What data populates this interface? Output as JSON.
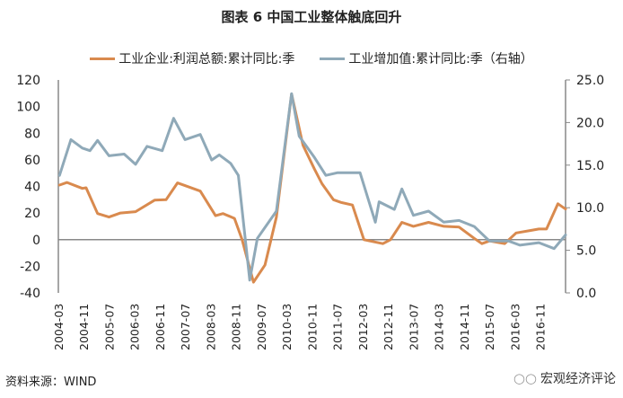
{
  "chart_data": {
    "type": "line",
    "title": "图表 6  中国工业整体触底回升",
    "xlabel": "",
    "x_tick_labels": [
      "2004-03",
      "2004-11",
      "2005-07",
      "2006-03",
      "2006-11",
      "2007-07",
      "2008-03",
      "2008-11",
      "2009-07",
      "2010-03",
      "2010-11",
      "2011-07",
      "2012-03",
      "2012-11",
      "2013-07",
      "2014-03",
      "2014-11",
      "2015-07",
      "2016-03",
      "2016-11"
    ],
    "x_range": [
      2004.17,
      2017.5
    ],
    "y_left": {
      "ylim": [
        -40,
        120
      ],
      "ticks": [
        "120",
        "100",
        "80",
        "60",
        "40",
        "20",
        "0",
        "-20",
        "-40"
      ]
    },
    "y_right": {
      "ylim": [
        0,
        25
      ],
      "ticks": [
        "25.0",
        "20.0",
        "15.0",
        "10.0",
        "5.0",
        "0.0"
      ]
    },
    "legend_placement": "top",
    "series": [
      {
        "name": "工业企业:利润总额:累计同比:季",
        "axis": "left",
        "color": "#d98a4e",
        "x": [
          2004.2,
          2004.4,
          2004.8,
          2004.9,
          2005.2,
          2005.5,
          2005.8,
          2006.2,
          2006.7,
          2007.0,
          2007.3,
          2007.5,
          2007.9,
          2008.3,
          2008.5,
          2008.8,
          2009.0,
          2009.3,
          2009.6,
          2009.9,
          2010.3,
          2010.6,
          2010.9,
          2011.1,
          2011.4,
          2011.6,
          2011.9,
          2012.2,
          2012.7,
          2012.9,
          2013.2,
          2013.5,
          2013.9,
          2014.3,
          2014.7,
          2015.1,
          2015.3,
          2015.5,
          2015.9,
          2016.2,
          2016.6,
          2016.8,
          2017.0,
          2017.3,
          2017.5
        ],
        "values": [
          41,
          43,
          38.5,
          39,
          19.6,
          17,
          20,
          21,
          29.7,
          30,
          42.6,
          40.6,
          36.5,
          18,
          19.6,
          16,
          0,
          -32,
          -19,
          17,
          109.5,
          71,
          53,
          42,
          30,
          28,
          26,
          0,
          -3,
          0,
          13,
          10,
          13,
          10,
          9.5,
          1,
          -3,
          -1,
          -3,
          5,
          7,
          8,
          8,
          27,
          23
        ]
      },
      {
        "name": "工业增加值:累计同比:季（右轴）",
        "axis": "right",
        "color": "#8fa9b8",
        "x": [
          2004.2,
          2004.5,
          2004.8,
          2005.0,
          2005.2,
          2005.5,
          2005.9,
          2006.2,
          2006.5,
          2006.9,
          2007.2,
          2007.5,
          2007.9,
          2008.2,
          2008.4,
          2008.7,
          2008.9,
          2009.2,
          2009.4,
          2009.9,
          2010.3,
          2010.5,
          2010.9,
          2011.2,
          2011.5,
          2011.6,
          2012.1,
          2012.5,
          2012.6,
          2013.0,
          2013.2,
          2013.5,
          2013.9,
          2014.3,
          2014.7,
          2015.1,
          2015.5,
          2016.0,
          2016.3,
          2016.8,
          2017.2,
          2017.5
        ],
        "values": [
          13.8,
          18,
          17,
          16.7,
          17.9,
          16.1,
          16.3,
          15.1,
          17.2,
          16.7,
          20.5,
          18,
          18.6,
          15.6,
          16.2,
          15.2,
          13.8,
          1.5,
          6.4,
          9.6,
          23.4,
          18.4,
          15.9,
          13.8,
          14.1,
          14.1,
          14.1,
          8.3,
          10.7,
          9.8,
          12.2,
          9.1,
          9.6,
          8.3,
          8.5,
          7.8,
          6.1,
          6.1,
          5.6,
          5.9,
          5.2,
          6.8
        ]
      }
    ]
  },
  "footer": {
    "source": "资料来源：WIND",
    "brand": "宏观经济评论"
  }
}
